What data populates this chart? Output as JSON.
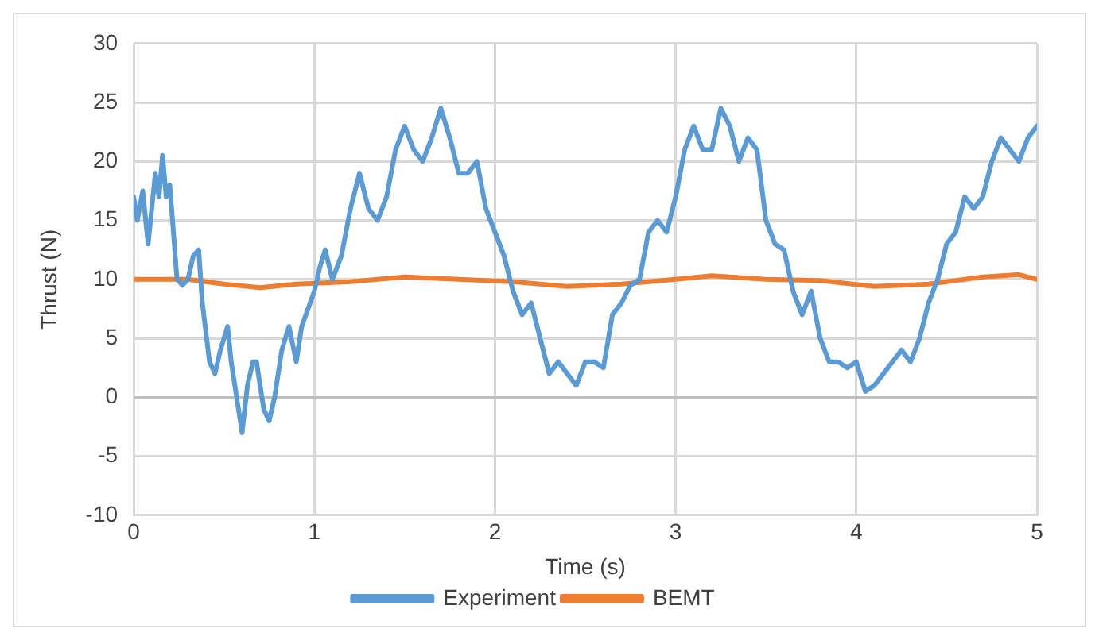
{
  "chart_data": {
    "type": "line",
    "xlabel": "Time (s)",
    "ylabel": "Thrust (N)",
    "xlim": [
      0,
      5
    ],
    "xticks": [
      0,
      1,
      2,
      3,
      4,
      5
    ],
    "ylim": [
      -10,
      30
    ],
    "yticks": [
      -10,
      -5,
      0,
      5,
      10,
      15,
      20,
      25,
      30
    ],
    "grid": true,
    "legend": "bottom",
    "marker": "none",
    "line_style": "solid",
    "series": [
      {
        "name": "Experiment",
        "color": "#5b9bd5",
        "x": [
          0,
          0.02,
          0.05,
          0.08,
          0.1,
          0.12,
          0.14,
          0.16,
          0.18,
          0.2,
          0.24,
          0.27,
          0.3,
          0.33,
          0.36,
          0.38,
          0.42,
          0.45,
          0.48,
          0.5,
          0.52,
          0.54,
          0.58,
          0.6,
          0.63,
          0.66,
          0.68,
          0.72,
          0.75,
          0.78,
          0.82,
          0.86,
          0.9,
          0.93,
          1,
          1.03,
          1.06,
          1.1,
          1.15,
          1.2,
          1.25,
          1.3,
          1.35,
          1.4,
          1.45,
          1.5,
          1.55,
          1.6,
          1.65,
          1.7,
          1.75,
          1.8,
          1.85,
          1.9,
          1.95,
          2,
          2.05,
          2.1,
          2.15,
          2.2,
          2.25,
          2.3,
          2.35,
          2.4,
          2.45,
          2.5,
          2.55,
          2.6,
          2.65,
          2.7,
          2.75,
          2.8,
          2.85,
          2.9,
          2.95,
          3,
          3.05,
          3.1,
          3.15,
          3.2,
          3.25,
          3.3,
          3.35,
          3.4,
          3.45,
          3.5,
          3.55,
          3.6,
          3.65,
          3.7,
          3.75,
          3.8,
          3.85,
          3.9,
          3.95,
          4,
          4.05,
          4.1,
          4.15,
          4.2,
          4.25,
          4.3,
          4.35,
          4.4,
          4.45,
          4.5,
          4.55,
          4.6,
          4.65,
          4.7,
          4.75,
          4.8,
          4.85,
          4.9,
          4.95,
          5
        ],
        "values": [
          17,
          15,
          17.5,
          13,
          16,
          19,
          17,
          20.5,
          17,
          18,
          10,
          9.5,
          10,
          12,
          12.5,
          8,
          3,
          2,
          4,
          5,
          6,
          3,
          -1,
          -3,
          1,
          3,
          3,
          -1,
          -2,
          0,
          4,
          6,
          3,
          6,
          9,
          11,
          12.5,
          10,
          12,
          16,
          19,
          16,
          15,
          17,
          21,
          23,
          21,
          20,
          22,
          24.5,
          22,
          19,
          19,
          20,
          16,
          14,
          12,
          9,
          7,
          8,
          5,
          2,
          3,
          2,
          1,
          3,
          3,
          2.5,
          7,
          8,
          9.5,
          10,
          14,
          15,
          14,
          17,
          21,
          23,
          21,
          21,
          24.5,
          23,
          20,
          22,
          21,
          15,
          13,
          12.5,
          9,
          7,
          9,
          5,
          3,
          3,
          2.5,
          3,
          0.5,
          1,
          2,
          3,
          4,
          3,
          5,
          8,
          10,
          13,
          14,
          17,
          16,
          17,
          20,
          22,
          21,
          20,
          22,
          23
        ]
      },
      {
        "name": "BEMT",
        "color": "#ed7d31",
        "x": [
          0,
          0.3,
          0.5,
          0.7,
          0.9,
          1.2,
          1.5,
          1.8,
          2.1,
          2.4,
          2.7,
          3,
          3.2,
          3.5,
          3.8,
          4.1,
          4.4,
          4.7,
          4.9,
          5
        ],
        "values": [
          10,
          10,
          9.6,
          9.3,
          9.6,
          9.8,
          10.2,
          10,
          9.8,
          9.4,
          9.6,
          10,
          10.3,
          10,
          9.9,
          9.4,
          9.6,
          10.2,
          10.4,
          10
        ]
      }
    ]
  }
}
